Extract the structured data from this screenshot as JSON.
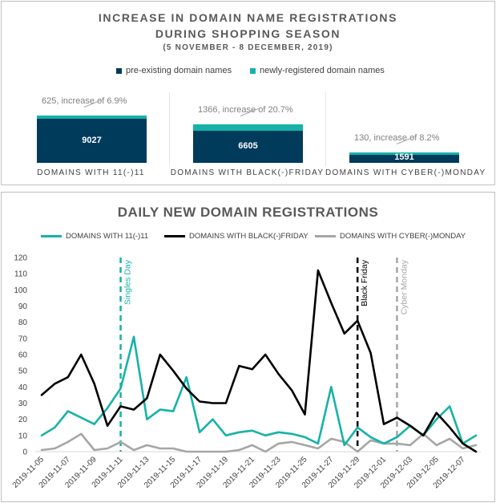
{
  "colors": {
    "preexisting": "#003b5c",
    "newly": "#16b2a8",
    "s1111": "#16b2a8",
    "blackfriday": "#000000",
    "cybermonday": "#a6a6a6",
    "text": "#595959"
  },
  "top": {
    "title_line1": "INCREASE IN DOMAIN NAME REGISTRATIONS",
    "title_line2": "DURING SHOPPING SEASON",
    "subtitle": "(5 NOVEMBER - 8 DECEMBER, 2019)",
    "legend_pre": "pre-existing domain names",
    "legend_new": "newly-registered domain names"
  },
  "bottom": {
    "title": "DAILY NEW DOMAIN REGISTRATIONS",
    "marker_singles": "Singles Day",
    "marker_black": "Black Friday",
    "marker_cyber": "Cyber Monday"
  },
  "chart_data": [
    {
      "type": "bar",
      "stacked": true,
      "title": "INCREASE IN DOMAIN NAME REGISTRATIONS DURING SHOPPING SEASON",
      "subtitle": "(5 NOVEMBER - 8 DECEMBER, 2019)",
      "legend": "top",
      "categories": [
        "DOMAINS WITH 11(-)11",
        "DOMAINS WITH BLACK(-)FRIDAY",
        "DOMAINS WITH CYBER(-)MONDAY"
      ],
      "series": [
        {
          "name": "pre-existing domain names",
          "values": [
            9027,
            6605,
            1591
          ]
        },
        {
          "name": "newly-registered domain names",
          "values": [
            625,
            1366,
            130
          ]
        }
      ],
      "annotations": [
        "625, increase of 6.9%",
        "1366, increase of 20.7%",
        "130, increase of 8.2%"
      ],
      "ylim": [
        0,
        11000
      ]
    },
    {
      "type": "line",
      "title": "DAILY NEW DOMAIN REGISTRATIONS",
      "legend": "top",
      "grid": false,
      "ylim": [
        0,
        120
      ],
      "yticks": [
        0,
        10,
        20,
        30,
        40,
        50,
        60,
        70,
        80,
        90,
        100,
        110,
        120
      ],
      "x": [
        "2019-11-05",
        "2019-11-06",
        "2019-11-07",
        "2019-11-08",
        "2019-11-09",
        "2019-11-10",
        "2019-11-11",
        "2019-11-12",
        "2019-11-13",
        "2019-11-14",
        "2019-11-15",
        "2019-11-16",
        "2019-11-17",
        "2019-11-18",
        "2019-11-19",
        "2019-11-20",
        "2019-11-21",
        "2019-11-22",
        "2019-11-23",
        "2019-11-24",
        "2019-11-25",
        "2019-11-26",
        "2019-11-27",
        "2019-11-28",
        "2019-11-29",
        "2019-11-30",
        "2019-12-01",
        "2019-12-02",
        "2019-12-03",
        "2019-12-04",
        "2019-12-05",
        "2019-12-06",
        "2019-12-07",
        "2019-12-08"
      ],
      "xtick_labels": [
        "2019-11-05",
        "2019-11-07",
        "2019-11-09",
        "2019-11-11",
        "2019-11-13",
        "2019-11-15",
        "2019-11-17",
        "2019-11-19",
        "2019-11-21",
        "2019-11-23",
        "2019-11-25",
        "2019-11-27",
        "2019-11-29",
        "2019-12-01",
        "2019-12-03",
        "2019-12-05",
        "2019-12-07"
      ],
      "series": [
        {
          "name": "DOMAINS WITH 11(-)11",
          "values": [
            10,
            15,
            25,
            21,
            17,
            27,
            39,
            71,
            20,
            26,
            25,
            46,
            12,
            20,
            10,
            12,
            13,
            10,
            12,
            11,
            9,
            5,
            40,
            4,
            15,
            9,
            5,
            9,
            16,
            10,
            20,
            28,
            5,
            10
          ]
        },
        {
          "name": "DOMAINS WITH BLACK(-)FRIDAY",
          "values": [
            35,
            42,
            46,
            60,
            42,
            16,
            28,
            26,
            33,
            60,
            50,
            39,
            31,
            30,
            30,
            53,
            51,
            60,
            48,
            38,
            23,
            112,
            92,
            73,
            81,
            61,
            17,
            21,
            16,
            10,
            24,
            15,
            5,
            0
          ]
        },
        {
          "name": "DOMAINS WITH CYBER(-)MONDAY",
          "values": [
            1,
            2,
            6,
            11,
            1,
            2,
            6,
            1,
            4,
            2,
            2,
            0,
            0,
            0,
            0,
            1,
            4,
            0,
            5,
            6,
            4,
            2,
            8,
            6,
            0,
            7,
            5,
            5,
            4,
            11,
            4,
            8,
            2,
            4
          ]
        }
      ],
      "vertical_markers": [
        {
          "x": "2019-11-11",
          "label": "Singles Day"
        },
        {
          "x": "2019-11-29",
          "label": "Black Friday"
        },
        {
          "x": "2019-12-02",
          "label": "Cyber Monday"
        }
      ]
    }
  ]
}
